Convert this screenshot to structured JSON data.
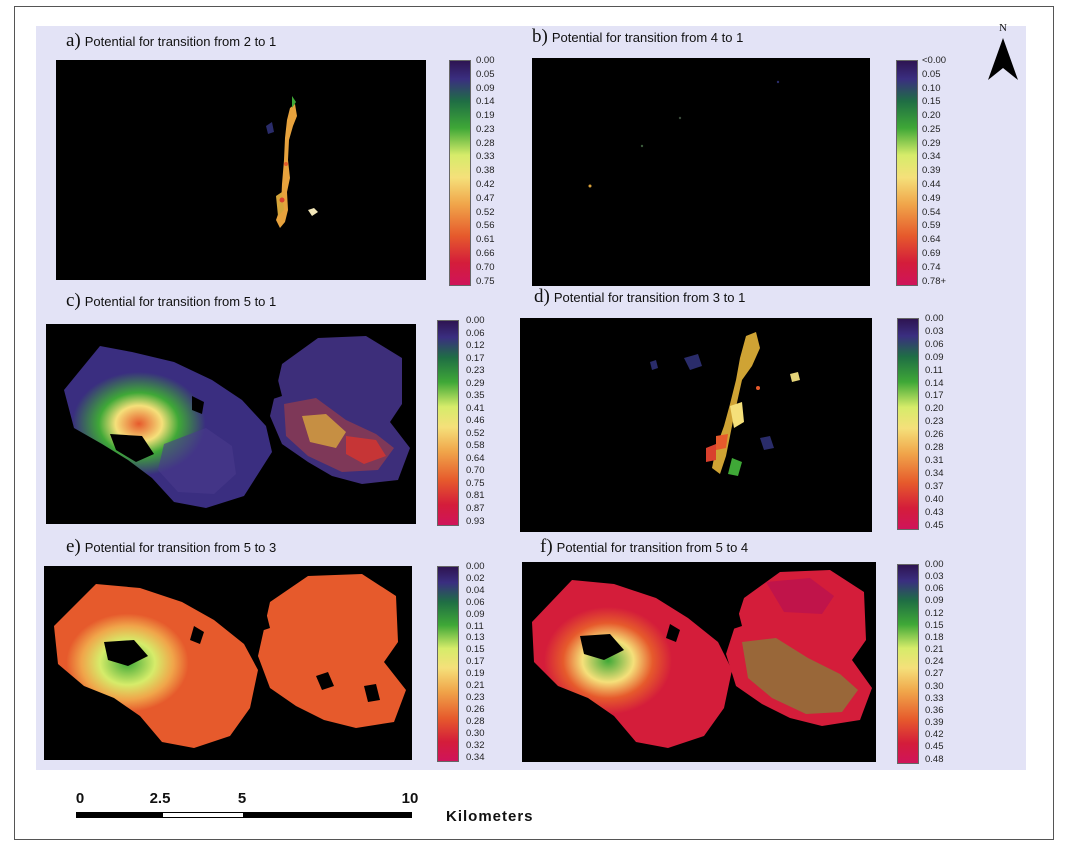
{
  "panels": [
    {
      "letter": "a)",
      "title": "Potential for transition from 2 to 1",
      "ticks": [
        "0.00",
        "0.05",
        "0.09",
        "0.14",
        "0.19",
        "0.23",
        "0.28",
        "0.33",
        "0.38",
        "0.42",
        "0.47",
        "0.52",
        "0.56",
        "0.61",
        "0.66",
        "0.70",
        "0.75"
      ]
    },
    {
      "letter": "b)",
      "title": "Potential for transition from 4 to 1",
      "ticks": [
        "<0.00",
        "0.05",
        "0.10",
        "0.15",
        "0.20",
        "0.25",
        "0.29",
        "0.34",
        "0.39",
        "0.44",
        "0.49",
        "0.54",
        "0.59",
        "0.64",
        "0.69",
        "0.74",
        "0.78+"
      ]
    },
    {
      "letter": "c)",
      "title": "Potential for transition from 5 to 1",
      "ticks": [
        "0.00",
        "0.06",
        "0.12",
        "0.17",
        "0.23",
        "0.29",
        "0.35",
        "0.41",
        "0.46",
        "0.52",
        "0.58",
        "0.64",
        "0.70",
        "0.75",
        "0.81",
        "0.87",
        "0.93"
      ]
    },
    {
      "letter": "d)",
      "title": "Potential for transition from 3 to 1",
      "ticks": [
        "0.00",
        "0.03",
        "0.06",
        "0.09",
        "0.11",
        "0.14",
        "0.17",
        "0.20",
        "0.23",
        "0.26",
        "0.28",
        "0.31",
        "0.34",
        "0.37",
        "0.40",
        "0.43",
        "0.45"
      ]
    },
    {
      "letter": "e)",
      "title": "Potential for transition from 5 to 3",
      "ticks": [
        "0.00",
        "0.02",
        "0.04",
        "0.06",
        "0.09",
        "0.11",
        "0.13",
        "0.15",
        "0.17",
        "0.19",
        "0.21",
        "0.23",
        "0.26",
        "0.28",
        "0.30",
        "0.32",
        "0.34"
      ]
    },
    {
      "letter": "f)",
      "title": "Potential for transition from 5 to 4",
      "ticks": [
        "0.00",
        "0.03",
        "0.06",
        "0.09",
        "0.12",
        "0.15",
        "0.18",
        "0.21",
        "0.24",
        "0.27",
        "0.30",
        "0.33",
        "0.36",
        "0.39",
        "0.42",
        "0.45",
        "0.48"
      ]
    }
  ],
  "north_arrow": {
    "label": "N",
    "icon": "north-arrow-icon"
  },
  "scale_bar": {
    "labels": [
      "0",
      "2.5",
      "5",
      "10"
    ],
    "unit": "Kilometers"
  },
  "colors": {
    "figure_background": "#e3e3f6",
    "map_background": "#000000",
    "ramp_low": "#2e1452",
    "ramp_mid": "#f5e07a",
    "ramp_high": "#d0145a"
  }
}
